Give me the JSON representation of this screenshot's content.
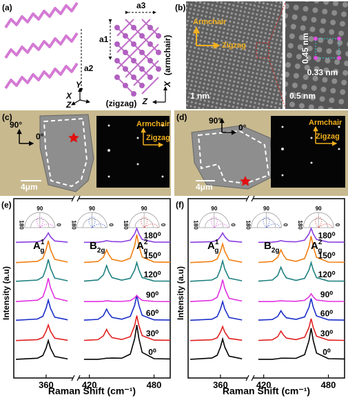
{
  "panel_a": {
    "label": "(a)",
    "a3": "a3",
    "a1": "a1",
    "a2": "a2",
    "axis_y": "Y",
    "axis_x": "X",
    "axis_z": "Z",
    "right_x": "X",
    "armchair": "(armchair)",
    "right_z": "Z",
    "zigzag": "(zigzag)"
  },
  "panel_b": {
    "label": "(b)",
    "armchair": "Armchair",
    "zigzag": "Zigzag",
    "scale_left": "1 nm",
    "spacing_vertical": "0.45 nm",
    "spacing_horizontal": "0.33 nm",
    "scale_right": "0.5 nm"
  },
  "panel_c": {
    "label": "(c)",
    "angle_90": "90°",
    "angle_0": "0°",
    "armchair": "Armchair",
    "zigzag": "Zigzag",
    "scale": "4μm"
  },
  "panel_d": {
    "label": "(d)",
    "angle_90": "90°",
    "angle_0": "0°",
    "armchair": "Armchair",
    "zigzag": "Zigzag",
    "scale": "4μm"
  },
  "chart_data": [
    {
      "type": "line",
      "panel_label": "(e)",
      "xlabel": "Raman Shift (cm⁻¹)",
      "ylabel": "Intensity (a.u)",
      "polar_insets": [
        {
          "top": "90",
          "left": "180",
          "right": "0"
        },
        {
          "top": "90",
          "left": "180",
          "right": "0"
        },
        {
          "top": "90",
          "left": "180",
          "right": "0"
        }
      ],
      "peak_labels": [
        {
          "base": "A",
          "sub": "g",
          "sup": "1"
        },
        {
          "base": "B",
          "sub": "2g"
        },
        {
          "base": "A",
          "sub": "g",
          "sup": "2"
        }
      ],
      "xlim": [
        330,
        495
      ],
      "xbreak": [
        385,
        410
      ],
      "xticks": [
        360,
        420,
        480
      ],
      "ylim": [
        0,
        115
      ],
      "x": [
        332,
        352,
        357,
        360,
        362,
        364,
        368,
        380,
        398,
        415,
        428,
        433,
        436,
        438,
        441,
        450,
        458,
        462,
        464,
        466,
        469,
        480,
        495
      ],
      "series": [
        {
          "name": "0⁰",
          "color": "#000000",
          "values": [
            12,
            12.7,
            14.4,
            19.2,
            24,
            19.2,
            13.8,
            12.2,
            null,
            12,
            12,
            12.4,
            12.7,
            12.7,
            12.8,
            12.7,
            15.3,
            25.2,
            34,
            25.2,
            16.4,
            12.4,
            12.2
          ]
        },
        {
          "name": "30⁰",
          "color": "#e02020",
          "values": [
            24,
            24.6,
            26,
            30,
            34,
            30,
            25.5,
            24.2,
            null,
            24.1,
            24.6,
            27,
            31.2,
            28.5,
            25.9,
            24.7,
            26.5,
            33.6,
            40,
            33.6,
            27.2,
            24.3,
            24.2
          ]
        },
        {
          "name": "60⁰",
          "color": "#1a2ec8",
          "values": [
            37,
            37.8,
            39.6,
            44.8,
            50,
            44.8,
            39,
            37.3,
            null,
            37.1,
            37.6,
            40,
            44.2,
            41.5,
            38.9,
            37.7,
            39.5,
            46.6,
            53,
            46.6,
            40.2,
            37.3,
            37.2
          ]
        },
        {
          "name": "90⁰",
          "color": "#e030e0",
          "values": [
            49,
            49.9,
            52,
            58,
            64,
            58,
            51.3,
            49.3,
            null,
            49,
            49,
            49.2,
            49.5,
            49.4,
            49.2,
            49.1,
            49.6,
            51.4,
            53,
            51.4,
            49.8,
            49.1,
            49
          ]
        },
        {
          "name": "120⁰",
          "color": "#1f8080",
          "values": [
            62,
            62.8,
            64.8,
            70.4,
            76,
            70.4,
            64.1,
            62.3,
            null,
            62.1,
            62.9,
            66.1,
            72.1,
            68.2,
            64.4,
            62.7,
            63.9,
            69.2,
            74,
            69.2,
            64.4,
            62.2,
            62.1
          ]
        },
        {
          "name": "150⁰",
          "color": "#f07f10",
          "values": [
            74,
            74.8,
            76.8,
            82.4,
            88,
            82.4,
            76.1,
            74.3,
            null,
            74.1,
            74.7,
            77.4,
            82.2,
            79.2,
            76.1,
            74.8,
            76.8,
            84.8,
            92,
            84.8,
            77.6,
            74.4,
            74.2
          ]
        },
        {
          "name": "180⁰",
          "color": "#8a3ee0",
          "values": [
            87,
            87.4,
            88.2,
            90.6,
            93,
            90.6,
            87.9,
            87.1,
            null,
            87,
            87.1,
            87.5,
            88.1,
            87.8,
            87.5,
            87.3,
            88.4,
            92.4,
            96,
            92.4,
            88.8,
            87.2,
            87.1
          ]
        }
      ]
    },
    {
      "type": "line",
      "panel_label": "(f)",
      "xlabel": "Raman Shift (cm⁻¹)",
      "ylabel": "Intensity (a.u)",
      "polar_insets": [
        {
          "top": "90",
          "left": "180",
          "right": "0"
        },
        {
          "top": "90",
          "left": "180",
          "right": "0"
        },
        {
          "top": "90",
          "left": "180",
          "right": "0"
        }
      ],
      "peak_labels": [
        {
          "base": "A",
          "sub": "g",
          "sup": "1"
        },
        {
          "base": "B",
          "sub": "2g"
        },
        {
          "base": "A",
          "sub": "g",
          "sup": "2"
        }
      ],
      "xlim": [
        330,
        495
      ],
      "xbreak": [
        385,
        410
      ],
      "xticks": [
        360,
        420,
        480
      ],
      "ylim": [
        0,
        115
      ],
      "x": [
        332,
        352,
        357,
        360,
        362,
        364,
        368,
        380,
        398,
        415,
        428,
        433,
        436,
        438,
        441,
        450,
        458,
        462,
        464,
        466,
        469,
        480,
        495
      ],
      "series": [
        {
          "name": "0⁰",
          "color": "#000000",
          "values": [
            12,
            12.8,
            14.6,
            19.8,
            25,
            19.8,
            14,
            12.3,
            null,
            12,
            12,
            12.4,
            12.7,
            12.7,
            12.7,
            12.6,
            15,
            24,
            32,
            24,
            16,
            12.4,
            12.2
          ]
        },
        {
          "name": "30⁰",
          "color": "#e02020",
          "values": [
            24,
            24.5,
            25.8,
            29.4,
            33,
            29.4,
            25.4,
            24.2,
            null,
            24.1,
            24.5,
            26.5,
            30.1,
            27.9,
            25.6,
            24.6,
            26.2,
            32.4,
            38,
            32.4,
            26.8,
            24.3,
            24.1
          ]
        },
        {
          "name": "60⁰",
          "color": "#1a2ec8",
          "values": [
            37,
            37.7,
            39.4,
            44.2,
            49,
            44.2,
            38.8,
            37.2,
            null,
            37.1,
            37.5,
            39.5,
            43.1,
            40.9,
            38.6,
            37.6,
            39.2,
            45.4,
            51,
            45.4,
            39.8,
            37.3,
            37.1
          ]
        },
        {
          "name": "90⁰",
          "color": "#e030e0",
          "values": [
            49,
            49.8,
            51.8,
            57.4,
            63,
            57.4,
            51.1,
            49.3,
            null,
            49,
            49,
            49.3,
            49.6,
            49.4,
            49.3,
            49.2,
            49.8,
            52,
            54,
            52,
            50,
            49.1,
            49.1
          ]
        },
        {
          "name": "120⁰",
          "color": "#1f8080",
          "values": [
            62,
            62.8,
            64.6,
            69.8,
            75,
            69.8,
            64,
            62.3,
            null,
            62.1,
            62.8,
            65.7,
            71.1,
            67.6,
            64.2,
            62.6,
            63.9,
            69.2,
            74,
            69.2,
            64.4,
            62.2,
            62.1
          ]
        },
        {
          "name": "150⁰",
          "color": "#f07f10",
          "values": [
            74,
            74.7,
            76.4,
            81.2,
            86,
            81.2,
            75.8,
            74.2,
            null,
            74.1,
            74.7,
            77.4,
            82.2,
            79.2,
            76.1,
            74.8,
            76.6,
            84.2,
            91,
            84.2,
            77.4,
            74.3,
            74.2
          ]
        },
        {
          "name": "180⁰",
          "color": "#8a3ee0",
          "values": [
            87,
            87.4,
            88.2,
            90.6,
            93,
            90.6,
            87.9,
            87.1,
            null,
            87,
            87.1,
            87.5,
            88.1,
            87.8,
            87.5,
            87.3,
            88.4,
            92.4,
            96,
            92.4,
            88.8,
            87.2,
            87.1
          ]
        }
      ]
    }
  ]
}
